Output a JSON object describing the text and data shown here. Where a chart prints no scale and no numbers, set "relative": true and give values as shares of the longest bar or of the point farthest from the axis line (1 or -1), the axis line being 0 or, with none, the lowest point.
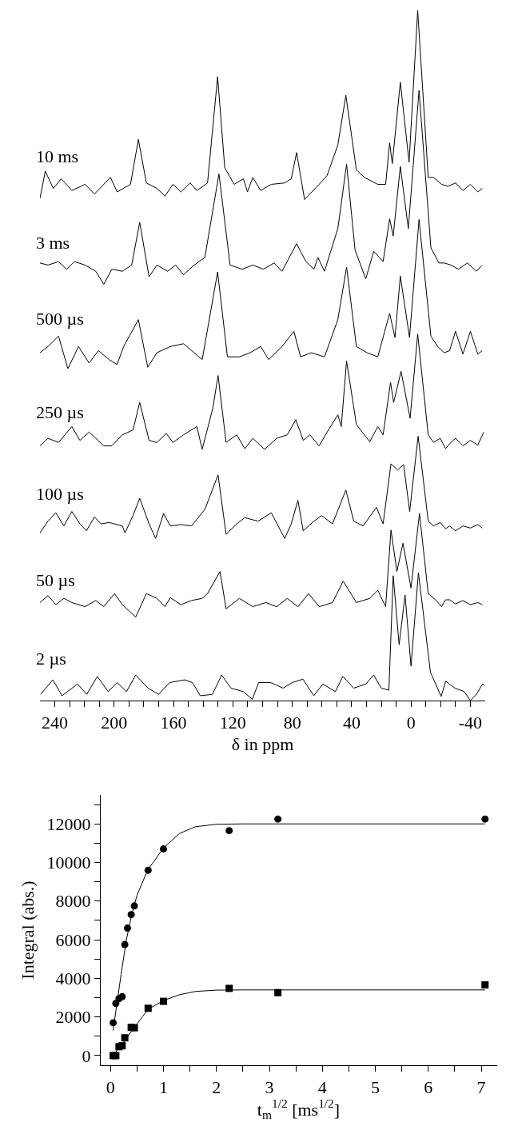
{
  "chart_data": [
    {
      "type": "line",
      "relative": true,
      "xlim": [
        250,
        -50
      ],
      "tick_labels": "x",
      "xlabel": "δ in ppm",
      "xticks": [
        240,
        {
          "value": 230,
          "label": null
        },
        {
          "value": 220,
          "label": null
        },
        {
          "value": 210,
          "label": null
        },
        200,
        {
          "value": 190,
          "label": null
        },
        {
          "value": 180,
          "label": null
        },
        {
          "value": 170,
          "label": null
        },
        160,
        {
          "value": 150,
          "label": null
        },
        {
          "value": 140,
          "label": null
        },
        {
          "value": 130,
          "label": null
        },
        120,
        {
          "value": 110,
          "label": null
        },
        {
          "value": 100,
          "label": null
        },
        {
          "value": 90,
          "label": null
        },
        80,
        {
          "value": 70,
          "label": null
        },
        {
          "value": 60,
          "label": null
        },
        {
          "value": 50,
          "label": null
        },
        40,
        {
          "value": 30,
          "label": null
        },
        {
          "value": 20,
          "label": null
        },
        {
          "value": 10,
          "label": null
        },
        0,
        {
          "value": -10,
          "label": null
        },
        {
          "value": -20,
          "label": null
        },
        {
          "value": -30,
          "label": null
        },
        -40
      ],
      "series": [
        {
          "name": "10 ms",
          "color": "#000000",
          "x": [
            250,
            246.4,
            241,
            235.7,
            228.5,
            219.6,
            213.3,
            202.5,
            198,
            189,
            183.7,
            178.3,
            171.2,
            165.8,
            160.4,
            155,
            148.8,
            144.3,
            137.1,
            130.3,
            125.5,
            119.2,
            112.9,
            110.2,
            106.6,
            101.3,
            94.1,
            85.2,
            80.7,
            77.1,
            71.7,
            61.9,
            56.5,
            49.3,
            43.9,
            36.8,
            31.4,
            22.4,
            17.1,
            14.4,
            12.6,
            7.2,
            1.3,
            -4.5,
            -11.6,
            -15.2,
            -20.6,
            -25,
            -30,
            -35,
            -40,
            -45,
            -48
          ],
          "values": [
            0.728,
            0.767,
            0.742,
            0.756,
            0.739,
            0.748,
            0.734,
            0.758,
            0.737,
            0.748,
            0.813,
            0.75,
            0.742,
            0.731,
            0.748,
            0.737,
            0.75,
            0.739,
            0.75,
            0.904,
            0.772,
            0.748,
            0.756,
            0.737,
            0.758,
            0.739,
            0.748,
            0.75,
            0.756,
            0.794,
            0.726,
            0.748,
            0.761,
            0.805,
            0.877,
            0.769,
            0.758,
            0.748,
            0.748,
            0.808,
            0.778,
            0.896,
            0.78,
            1,
            0.758,
            0.758,
            0.748,
            0.745,
            0.75,
            0.739,
            0.748,
            0.737,
            0.742
          ]
        },
        {
          "name": "3 ms",
          "color": "#000000",
          "x": [
            250,
            244.6,
            237.5,
            232.1,
            226.7,
            219.6,
            212.4,
            207,
            201.6,
            194.5,
            188.2,
            182.8,
            176.5,
            171.2,
            164,
            158.6,
            153.3,
            146.1,
            138.9,
            129.4,
            121.9,
            113.8,
            106.6,
            99.5,
            92.3,
            86.9,
            77.1,
            70.8,
            65.4,
            62.7,
            58.3,
            49.3,
            43.4,
            37.7,
            30.5,
            25.1,
            18.8,
            14.4,
            12,
            7.2,
            1.8,
            -5.4,
            -13.4,
            -18.8,
            -22.4,
            -27,
            -32,
            -38,
            -44,
            -48
          ],
          "values": [
            0.634,
            0.631,
            0.636,
            0.625,
            0.636,
            0.631,
            0.622,
            0.603,
            0.625,
            0.622,
            0.631,
            0.693,
            0.614,
            0.631,
            0.622,
            0.631,
            0.617,
            0.631,
            0.642,
            0.763,
            0.631,
            0.625,
            0.631,
            0.625,
            0.634,
            0.622,
            0.662,
            0.636,
            0.625,
            0.642,
            0.622,
            0.684,
            0.777,
            0.653,
            0.611,
            0.651,
            0.636,
            0.698,
            0.673,
            0.774,
            0.684,
            0.884,
            0.656,
            0.634,
            0.634,
            0.631,
            0.625,
            0.634,
            0.622,
            0.631
          ]
        },
        {
          "name": "500 µs",
          "color": "#000000",
          "x": [
            250,
            244.6,
            237.5,
            231.2,
            224,
            216.9,
            210.6,
            203.4,
            198.1,
            193.6,
            183.7,
            177.4,
            171.2,
            162.2,
            153.3,
            146.1,
            140.7,
            130.3,
            123.7,
            115.6,
            108.4,
            101.3,
            95.9,
            86.9,
            78.9,
            74.4,
            67.2,
            58.3,
            49.3,
            43.4,
            36.8,
            29.6,
            22.4,
            14.4,
            10.8,
            7.2,
            1,
            -5.4,
            -13.4,
            -17.9,
            -22.4,
            -26,
            -30,
            -35,
            -40,
            -45,
            -48
          ],
          "values": [
            0.504,
            0.513,
            0.528,
            0.481,
            0.513,
            0.489,
            0.507,
            0.494,
            0.487,
            0.513,
            0.552,
            0.483,
            0.504,
            0.513,
            0.517,
            0.504,
            0.494,
            0.621,
            0.498,
            0.498,
            0.504,
            0.513,
            0.494,
            0.513,
            0.535,
            0.498,
            0.504,
            0.498,
            0.552,
            0.628,
            0.513,
            0.504,
            0.498,
            0.561,
            0.526,
            0.615,
            0.526,
            0.697,
            0.528,
            0.513,
            0.504,
            0.507,
            0.535,
            0.502,
            0.535,
            0.502,
            0.507
          ]
        },
        {
          "name": "250 µs",
          "color": "#000000",
          "x": [
            250,
            244.6,
            237.5,
            228.5,
            223.1,
            216.9,
            212.4,
            207,
            201.6,
            194.5,
            187.3,
            182.8,
            176.5,
            171.2,
            164.9,
            160.4,
            153.3,
            144.3,
            140.7,
            133.5,
            130,
            124.6,
            117.4,
            112,
            106.6,
            98.6,
            90.5,
            83.4,
            77.6,
            72.6,
            68.1,
            61.9,
            56.5,
            49.3,
            47,
            43.4,
            36.8,
            27.8,
            22.4,
            18.8,
            13.8,
            11.7,
            6.7,
            0.6,
            -4.5,
            -11.6,
            -15.2,
            -19.7,
            -23.3,
            -26,
            -30,
            -35,
            -40,
            -45,
            -49
          ],
          "values": [
            0.369,
            0.38,
            0.374,
            0.397,
            0.377,
            0.389,
            0.38,
            0.369,
            0.369,
            0.385,
            0.392,
            0.432,
            0.377,
            0.374,
            0.387,
            0.374,
            0.385,
            0.397,
            0.364,
            0.424,
            0.471,
            0.374,
            0.385,
            0.365,
            0.38,
            0.364,
            0.38,
            0.385,
            0.407,
            0.377,
            0.385,
            0.369,
            0.389,
            0.414,
            0.397,
            0.492,
            0.4,
            0.375,
            0.397,
            0.385,
            0.461,
            0.432,
            0.477,
            0.409,
            0.531,
            0.385,
            0.374,
            0.38,
            0.365,
            0.372,
            0.38,
            0.369,
            0.377,
            0.37,
            0.389
          ]
        },
        {
          "name": "100 µs",
          "color": "#000000",
          "x": [
            250,
            244.6,
            239.3,
            233.9,
            228.5,
            223.1,
            218.7,
            213.3,
            208.8,
            203.4,
            194.5,
            192.7,
            187.3,
            182.8,
            176.5,
            172.1,
            166.7,
            162.2,
            155,
            147.9,
            138.9,
            130,
            124.6,
            117.4,
            112,
            103.1,
            94.1,
            85.1,
            80.7,
            76.2,
            72.6,
            65.4,
            60.1,
            52.9,
            43.9,
            38.6,
            32.3,
            23.3,
            18.8,
            13.5,
            9,
            5,
            0.9,
            -4.8,
            -11.6,
            -15.2,
            -19.7,
            -23.3,
            -26,
            -30,
            -35,
            -40,
            -45,
            -48
          ],
          "values": [
            0.243,
            0.26,
            0.272,
            0.253,
            0.274,
            0.256,
            0.246,
            0.266,
            0.256,
            0.258,
            0.253,
            0.243,
            0.268,
            0.293,
            0.256,
            0.235,
            0.271,
            0.253,
            0.255,
            0.253,
            0.277,
            0.327,
            0.241,
            0.256,
            0.265,
            0.26,
            0.272,
            0.235,
            0.256,
            0.29,
            0.246,
            0.26,
            0.268,
            0.256,
            0.305,
            0.26,
            0.253,
            0.28,
            0.256,
            0.343,
            0.334,
            0.342,
            0.274,
            0.383,
            0.26,
            0.253,
            0.258,
            0.249,
            0.253,
            0.246,
            0.253,
            0.25,
            0.255,
            0.25
          ]
        },
        {
          "name": "50 µs",
          "color": "#000000",
          "x": [
            250,
            244.6,
            239.3,
            233.9,
            228.5,
            219.6,
            212.4,
            207,
            199.8,
            194.5,
            185.5,
            178.3,
            171.2,
            165.8,
            162.2,
            155,
            147.9,
            140.7,
            137.1,
            128.7,
            124.6,
            115.6,
            106.6,
            97.7,
            90.5,
            83.4,
            76.2,
            69,
            61.9,
            52.9,
            45.7,
            36.8,
            27.8,
            22.4,
            17.1,
            13.5,
            9.5,
            5.4,
            0,
            -5.7,
            -11.6,
            -17,
            -20.6,
            -23.3,
            -26,
            -30,
            -35,
            -40,
            -45,
            -48
          ],
          "values": [
            0.142,
            0.152,
            0.139,
            0.148,
            0.142,
            0.136,
            0.145,
            0.136,
            0.155,
            0.139,
            0.121,
            0.155,
            0.148,
            0.136,
            0.149,
            0.139,
            0.145,
            0.148,
            0.155,
            0.187,
            0.133,
            0.148,
            0.136,
            0.142,
            0.136,
            0.148,
            0.136,
            0.155,
            0.136,
            0.142,
            0.173,
            0.142,
            0.148,
            0.16,
            0.136,
            0.247,
            0.187,
            0.228,
            0.163,
            0.271,
            0.155,
            0.145,
            0.136,
            0.146,
            0.146,
            0.14,
            0.145,
            0.139,
            0.142,
            0.139
          ]
        },
        {
          "name": "2 µs",
          "color": "#000000",
          "x": [
            249.6,
            241.3,
            235.1,
            224.7,
            218.5,
            211.3,
            204.1,
            197.9,
            191.7,
            185.5,
            177.2,
            170,
            162.7,
            152.4,
            147.2,
            142,
            133.8,
            127.6,
            121.3,
            113.1,
            106.9,
            102.7,
            94.5,
            86.2,
            80,
            72.8,
            65.5,
            59.3,
            51,
            45.9,
            38.6,
            30.4,
            25.2,
            20,
            14.9,
            12,
            8,
            4,
            0,
            -5,
            -13.1,
            -20.3,
            -23.4,
            -29.6,
            -35.8,
            -40,
            -44.1,
            -48.2,
            -49.6
          ],
          "values": [
            0.009,
            0.03,
            0.007,
            0.024,
            0.009,
            0.035,
            0.013,
            0.026,
            0.013,
            0.037,
            0.018,
            0.009,
            0.026,
            0.03,
            0.026,
            0.007,
            0.009,
            0.037,
            0.018,
            0.013,
            0.002,
            0.026,
            0.026,
            0.018,
            0.026,
            0.031,
            0.007,
            0.024,
            0.013,
            0.035,
            0.018,
            0.024,
            0.037,
            0.018,
            0.015,
            0.181,
            0.081,
            0.153,
            0.05,
            0.185,
            0.041,
            0.006,
            0.028,
            0.018,
            0.013,
            0,
            0.009,
            0.024,
            0.022
          ]
        }
      ]
    },
    {
      "type": "scatter",
      "xlabel": "t$_{m}$$^{1/2}$ [ms$^{1/2}$]",
      "ylabel": "Integral (abs.)",
      "xlim": [
        -0.2,
        7.3
      ],
      "ylim": [
        -500,
        13500
      ],
      "xticks": [
        0,
        {
          "value": 0.5,
          "label": null
        },
        1,
        {
          "value": 1.5,
          "label": null
        },
        2,
        {
          "value": 2.5,
          "label": null
        },
        3,
        {
          "value": 3.5,
          "label": null
        },
        4,
        {
          "value": 4.5,
          "label": null
        },
        5,
        {
          "value": 5.5,
          "label": null
        },
        6,
        {
          "value": 6.5,
          "label": null
        },
        7
      ],
      "yticks": [
        0,
        {
          "value": 1000,
          "label": null
        },
        2000,
        {
          "value": 3000,
          "label": null
        },
        4000,
        {
          "value": 5000,
          "label": null
        },
        6000,
        {
          "value": 7000,
          "label": null
        },
        8000,
        {
          "value": 9000,
          "label": null
        },
        10000,
        {
          "value": 11000,
          "label": null
        },
        12000,
        {
          "value": 13000,
          "label": null
        }
      ],
      "series": [
        {
          "color": "#000000",
          "marker": "circle",
          "x": [
            0.05,
            0.1,
            0.16,
            0.22,
            0.27,
            0.32,
            0.39,
            0.45,
            0.71,
            1,
            2.24,
            3.16,
            7.07
          ],
          "values": [
            1700,
            2700,
            2950,
            3050,
            5750,
            6600,
            7300,
            7750,
            9600,
            10700,
            11650,
            12250,
            12250
          ]
        },
        {
          "color": "#000000",
          "marker": "square",
          "x": [
            0.05,
            0.1,
            0.16,
            0.22,
            0.27,
            0.39,
            0.45,
            0.71,
            1,
            2.24,
            3.16,
            7.07
          ],
          "values": [
            0,
            0,
            460,
            510,
            920,
            1460,
            1440,
            2450,
            2810,
            3480,
            3260,
            3660
          ]
        },
        {
          "type": "line",
          "color": "#000000",
          "marker": "none",
          "x": [
            0.05,
            0.1,
            0.2,
            0.3,
            0.4,
            0.5,
            0.7,
            1,
            1.3,
            1.6,
            2,
            2.5,
            7.07
          ],
          "values": [
            1300,
            2300,
            4200,
            6000,
            7300,
            8300,
            9600,
            10750,
            11500,
            11850,
            11980,
            12000,
            12000
          ]
        },
        {
          "type": "line",
          "color": "#000000",
          "marker": "none",
          "x": [
            0.05,
            0.2,
            0.3,
            0.45,
            0.6,
            0.71,
            1,
            1.3,
            1.6,
            2,
            2.5,
            7.07
          ],
          "values": [
            50,
            500,
            900,
            1450,
            2000,
            2400,
            2850,
            3150,
            3320,
            3390,
            3400,
            3400
          ]
        }
      ]
    }
  ]
}
